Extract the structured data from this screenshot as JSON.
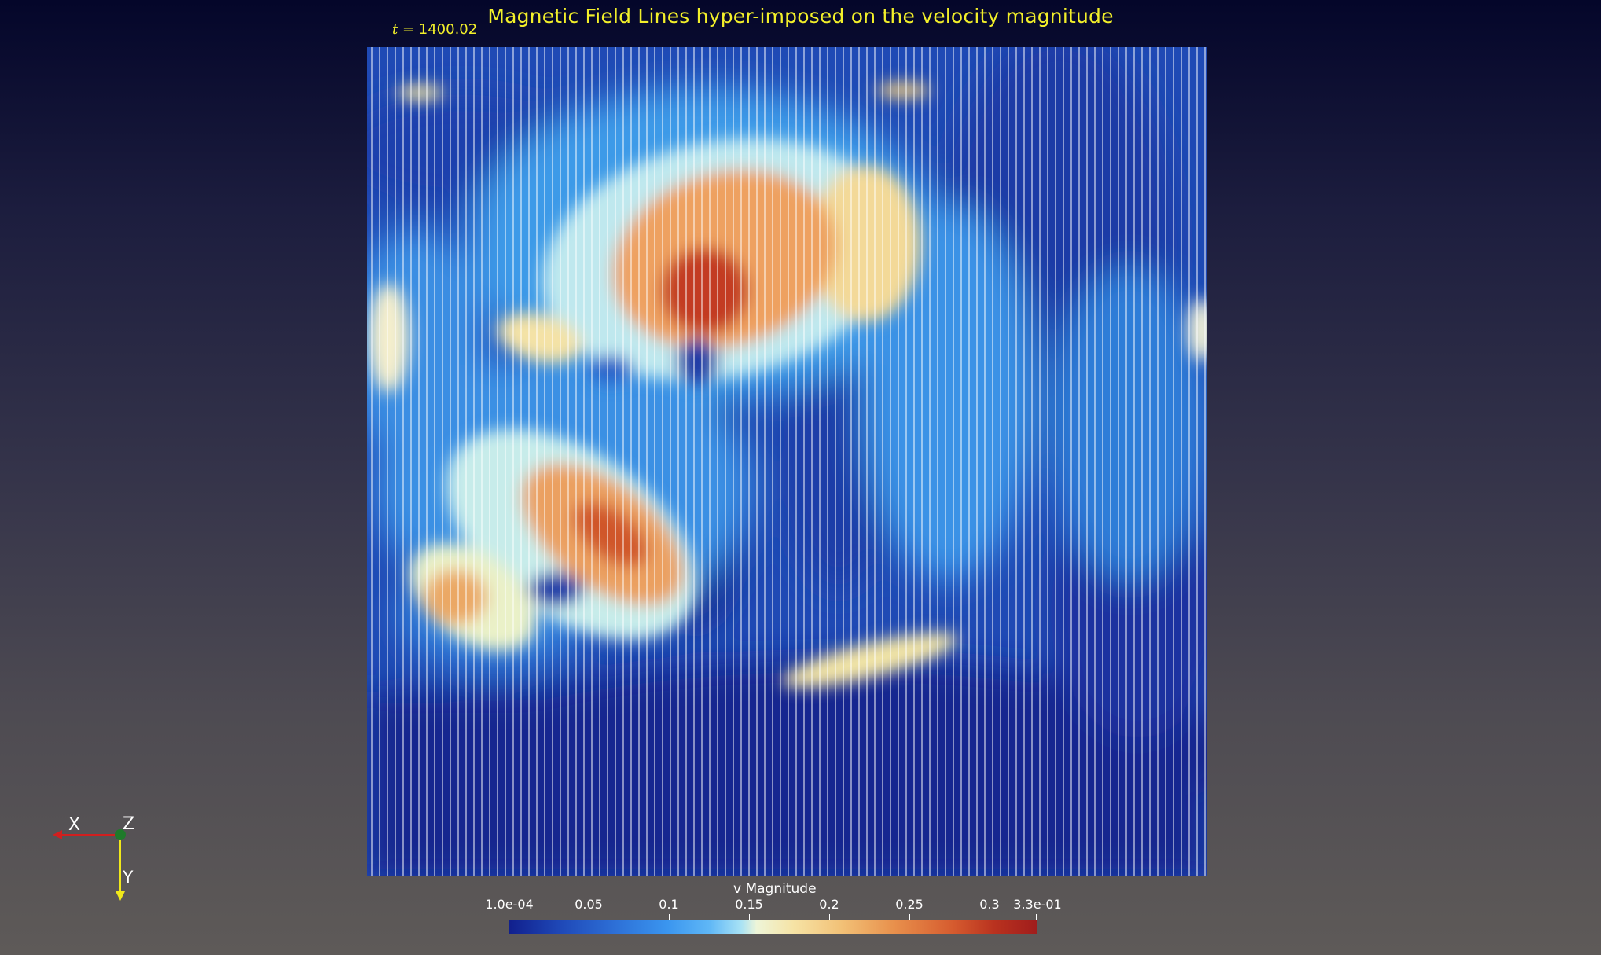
{
  "title": "Magnetic Field Lines hyper-imposed on the velocity magnitude",
  "time": {
    "symbol": "t",
    "value": "= 1400.02"
  },
  "colorbar": {
    "title": "v Magnitude",
    "labels": [
      "1.0e-04",
      "0.05",
      "0.1",
      "0.15",
      "0.2",
      "0.25",
      "0.3",
      "3.3e-01"
    ],
    "range": [
      0.0001,
      0.33
    ],
    "colormap": [
      "#111f8c",
      "#2d6fd6",
      "#5fb7f6",
      "#eef5d8",
      "#f2c177",
      "#d65c2f",
      "#a01d1c"
    ]
  },
  "axes": {
    "x_label": "X",
    "y_label": "Y",
    "z_label": "Z",
    "x_color": "#d11f1f",
    "y_color": "#f0e81a",
    "z_color": "#1f7a2a"
  }
}
